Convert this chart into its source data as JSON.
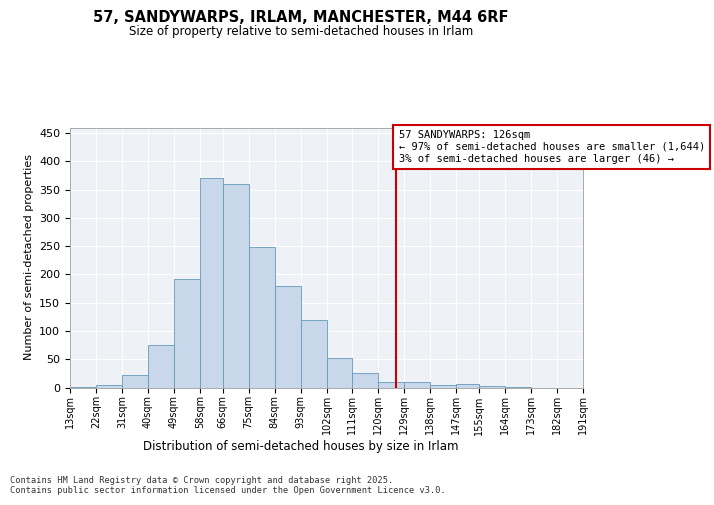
{
  "title": "57, SANDYWARPS, IRLAM, MANCHESTER, M44 6RF",
  "subtitle": "Size of property relative to semi-detached houses in Irlam",
  "xlabel": "Distribution of semi-detached houses by size in Irlam",
  "ylabel": "Number of semi-detached properties",
  "footer": "Contains HM Land Registry data © Crown copyright and database right 2025.\nContains public sector information licensed under the Open Government Licence v3.0.",
  "bins": [
    13,
    22,
    31,
    40,
    49,
    58,
    66,
    75,
    84,
    93,
    102,
    111,
    120,
    129,
    138,
    147,
    155,
    164,
    173,
    182,
    191
  ],
  "bar_values": [
    1,
    4,
    23,
    75,
    192,
    370,
    360,
    248,
    180,
    120,
    52,
    25,
    10,
    9,
    5,
    7,
    2,
    1,
    0,
    0
  ],
  "property_size": 126,
  "vline_x": 126,
  "annotation_text": "57 SANDYWARPS: 126sqm\n← 97% of semi-detached houses are smaller (1,644)\n3% of semi-detached houses are larger (46) →",
  "bar_facecolor": "#c8d8ea",
  "bar_edgecolor": "#6699bb",
  "vline_color": "#cc0000",
  "annotation_box_edgecolor": "#cc0000",
  "annotation_fontsize": 7.5,
  "background_color": "#eef2f7",
  "ylim": [
    0,
    460
  ],
  "yticks": [
    0,
    50,
    100,
    150,
    200,
    250,
    300,
    350,
    400,
    450
  ]
}
